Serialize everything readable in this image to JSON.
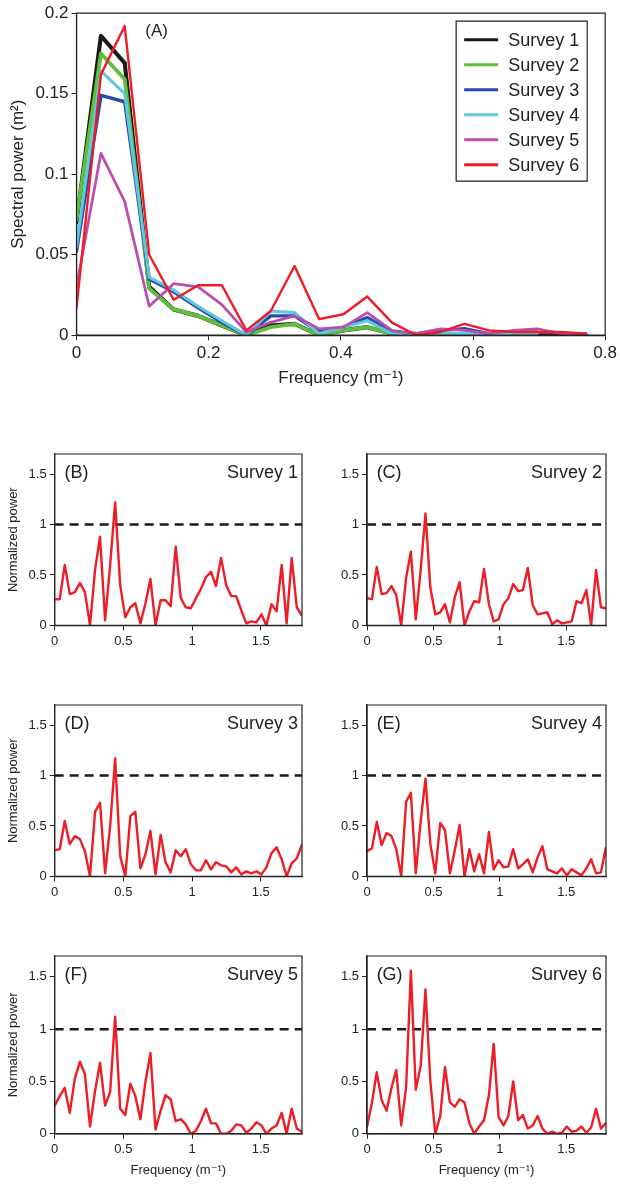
{
  "chart_data": [
    {
      "type": "line",
      "xlabel": "Frequency (m⁻¹)",
      "ylabel": "Spectral power (m²)",
      "annotations": [
        "(A)"
      ],
      "legend": "top right",
      "marker": "none",
      "grid": false,
      "x": [
        0,
        0.037,
        0.073,
        0.11,
        0.147,
        0.184,
        0.22,
        0.257,
        0.294,
        0.33,
        0.367,
        0.404,
        0.44,
        0.477,
        0.514,
        0.551,
        0.587,
        0.624,
        0.661,
        0.697,
        0.734,
        0.771
      ],
      "xlim": [
        0,
        0.8
      ],
      "xticks": [
        0,
        0.2,
        0.4,
        0.6,
        0.8
      ],
      "ylim": [
        0,
        0.2
      ],
      "yticks": [
        0,
        0.05,
        0.1,
        0.15,
        0.2
      ],
      "series": [
        {
          "name": "Survey 1",
          "color": "#1a1a1a",
          "values": [
            0.07,
            0.186,
            0.169,
            0.03,
            0.016,
            0.012,
            0.006,
            0,
            0.006,
            0.007,
            0,
            0.003,
            0.005,
            0.001,
            0,
            0,
            0,
            0,
            0,
            0,
            0,
            0
          ]
        },
        {
          "name": "Survey 2",
          "color": "#5fbf3a",
          "values": [
            0.072,
            0.175,
            0.159,
            0.029,
            0.016,
            0.012,
            0.006,
            0,
            0.005,
            0.007,
            0,
            0.003,
            0.005,
            0.001,
            0,
            null,
            null,
            null,
            null,
            null,
            null,
            null
          ]
        },
        {
          "name": "Survey 3",
          "color": "#2a4aa8",
          "values": [
            0.052,
            0.149,
            0.145,
            0.035,
            0.027,
            0.017,
            0.008,
            0,
            0.012,
            0.012,
            0.002,
            0.005,
            0.011,
            0.002,
            0.001,
            0.003,
            0.004,
            0.001,
            0.002,
            0.002,
            null,
            null
          ]
        },
        {
          "name": "Survey 4",
          "color": "#5fc8dc",
          "values": [
            0.055,
            0.164,
            0.15,
            0.036,
            0.028,
            0.018,
            0.009,
            0,
            0.015,
            0.014,
            0.001,
            0.005,
            0.009,
            0.001,
            0,
            0.001,
            0.001,
            0,
            0.001,
            0.001,
            null,
            null
          ]
        },
        {
          "name": "Survey 5",
          "color": "#b84fae",
          "values": [
            0.03,
            0.113,
            0.083,
            0.018,
            0.032,
            0.03,
            0.019,
            0.002,
            0.008,
            0.012,
            0.004,
            0.005,
            0.014,
            0.003,
            0.001,
            0.004,
            0.003,
            0.001,
            0.003,
            0.004,
            0.001,
            0.001
          ]
        },
        {
          "name": "Survey 6",
          "color": "#ee1c25",
          "values": [
            0.017,
            0.162,
            0.192,
            0.05,
            0.022,
            0.031,
            0.031,
            0.003,
            0.015,
            0.043,
            0.01,
            0.013,
            0.024,
            0.008,
            0,
            0.002,
            0.007,
            0.003,
            0.002,
            0.002,
            0.002,
            0.001
          ]
        }
      ]
    },
    {
      "type": "line",
      "ylabel": "Normalized power",
      "annotations": [
        "(B)",
        "Survey 1"
      ],
      "marker": "none",
      "grid": false,
      "x": [
        0,
        0.037,
        0.073,
        0.11,
        0.147,
        0.184,
        0.22,
        0.257,
        0.294,
        0.33,
        0.367,
        0.404,
        0.44,
        0.477,
        0.514,
        0.551,
        0.587,
        0.624,
        0.661,
        0.697,
        0.734,
        0.771,
        0.807,
        0.844,
        0.881,
        0.918,
        0.954,
        0.991,
        1.028,
        1.064,
        1.101,
        1.138,
        1.174,
        1.211,
        1.248,
        1.285,
        1.321,
        1.358,
        1.395,
        1.431,
        1.468,
        1.505,
        1.541,
        1.578,
        1.615,
        1.652,
        1.688,
        1.725,
        1.762,
        1.798
      ],
      "xlim": [
        0,
        1.8
      ],
      "xticks": [
        0,
        0.5,
        1,
        1.5
      ],
      "ylim": [
        0,
        1.7
      ],
      "yticks": [
        0,
        0.5,
        1,
        1.5
      ],
      "ref_lines": [
        {
          "axis": "y",
          "value": 1,
          "color": "#1a1a1a",
          "line_style": "dashed"
        }
      ],
      "series": [
        {
          "color": "#ee1c25",
          "values": [
            0.26,
            0.26,
            0.6,
            0.31,
            0.33,
            0.42,
            0.33,
            0,
            0.55,
            0.88,
            0.05,
            0.6,
            1.22,
            0.4,
            0.08,
            0.18,
            0.22,
            0.02,
            0.22,
            0.46,
            0,
            0.25,
            0.25,
            0.19,
            0.78,
            0.27,
            0.18,
            0.17,
            0.27,
            0.36,
            0.48,
            0.53,
            0.39,
            0.67,
            0.4,
            0.29,
            0.29,
            0.15,
            0.02,
            0.04,
            0.03,
            0.11,
            0,
            0.21,
            0.14,
            0.6,
            0.02,
            0.67,
            0.18,
            0.1
          ]
        }
      ]
    },
    {
      "type": "line",
      "annotations": [
        "(C)",
        "Survey 2"
      ],
      "marker": "none",
      "grid": false,
      "x": [
        0,
        0.037,
        0.073,
        0.11,
        0.147,
        0.184,
        0.22,
        0.257,
        0.294,
        0.33,
        0.367,
        0.404,
        0.44,
        0.477,
        0.514,
        0.551,
        0.587,
        0.624,
        0.661,
        0.697,
        0.734,
        0.771,
        0.807,
        0.844,
        0.881,
        0.918,
        0.954,
        0.991,
        1.028,
        1.064,
        1.101,
        1.138,
        1.174,
        1.211,
        1.248,
        1.285,
        1.321,
        1.358,
        1.395,
        1.431,
        1.468,
        1.505,
        1.541,
        1.578,
        1.615,
        1.652,
        1.688,
        1.725,
        1.762,
        1.798
      ],
      "xlim": [
        0,
        1.8
      ],
      "xticks": [
        0,
        0.5,
        1,
        1.5
      ],
      "ylim": [
        0,
        1.7
      ],
      "yticks": [
        0,
        0.5,
        1,
        1.5
      ],
      "ref_lines": [
        {
          "axis": "y",
          "value": 1,
          "color": "#1a1a1a",
          "line_style": "dashed"
        }
      ],
      "series": [
        {
          "color": "#ee1c25",
          "values": [
            0.27,
            0.26,
            0.58,
            0.31,
            0.32,
            0.39,
            0.3,
            0,
            0.47,
            0.73,
            0.06,
            0.55,
            1.11,
            0.37,
            0.11,
            0.13,
            0.21,
            0.03,
            0.28,
            0.43,
            0,
            0.14,
            0.24,
            0.23,
            0.56,
            0.21,
            0.04,
            0.06,
            0.21,
            0.27,
            0.41,
            0.34,
            0.35,
            0.57,
            0.2,
            0.11,
            0.12,
            0.13,
            0.01,
            0.05,
            0.02,
            0.03,
            0.04,
            0.24,
            0.22,
            0.35,
            0,
            0.55,
            0.18,
            0.17
          ]
        }
      ]
    },
    {
      "type": "line",
      "ylabel": "Normalized power",
      "annotations": [
        "(D)",
        "Survey 3"
      ],
      "marker": "none",
      "grid": false,
      "x": [
        0,
        0.037,
        0.073,
        0.11,
        0.147,
        0.184,
        0.22,
        0.257,
        0.294,
        0.33,
        0.367,
        0.404,
        0.44,
        0.477,
        0.514,
        0.551,
        0.587,
        0.624,
        0.661,
        0.697,
        0.734,
        0.771,
        0.807,
        0.844,
        0.881,
        0.918,
        0.954,
        0.991,
        1.028,
        1.064,
        1.101,
        1.138,
        1.174,
        1.211,
        1.248,
        1.285,
        1.321,
        1.358,
        1.395,
        1.431,
        1.468,
        1.505,
        1.541,
        1.578,
        1.615,
        1.652,
        1.688,
        1.725,
        1.762,
        1.798
      ],
      "xlim": [
        0,
        1.8
      ],
      "xticks": [
        0,
        0.5,
        1,
        1.5
      ],
      "ylim": [
        0,
        1.7
      ],
      "yticks": [
        0,
        0.5,
        1,
        1.5
      ],
      "ref_lines": [
        {
          "axis": "y",
          "value": 1,
          "color": "#1a1a1a",
          "line_style": "dashed"
        }
      ],
      "series": [
        {
          "color": "#ee1c25",
          "values": [
            0.26,
            0.27,
            0.55,
            0.32,
            0.4,
            0.37,
            0.25,
            0,
            0.64,
            0.73,
            0.03,
            0.5,
            1.17,
            0.2,
            0,
            0.6,
            0.64,
            0.08,
            0.22,
            0.45,
            0.02,
            0.41,
            0.14,
            0.04,
            0.26,
            0.2,
            0.27,
            0.12,
            0.06,
            0.06,
            0.16,
            0.07,
            0.14,
            0.11,
            0.1,
            0.04,
            0.09,
            0.02,
            0.05,
            0.03,
            0.05,
            0.02,
            0.09,
            0.23,
            0.29,
            0.17,
            0,
            0.13,
            0.18,
            0.31
          ]
        }
      ]
    },
    {
      "type": "line",
      "annotations": [
        "(E)",
        "Survey 4"
      ],
      "marker": "none",
      "grid": false,
      "x": [
        0,
        0.037,
        0.073,
        0.11,
        0.147,
        0.184,
        0.22,
        0.257,
        0.294,
        0.33,
        0.367,
        0.404,
        0.44,
        0.477,
        0.514,
        0.551,
        0.587,
        0.624,
        0.661,
        0.697,
        0.734,
        0.771,
        0.807,
        0.844,
        0.881,
        0.918,
        0.954,
        0.991,
        1.028,
        1.064,
        1.101,
        1.138,
        1.174,
        1.211,
        1.248,
        1.285,
        1.321,
        1.358,
        1.395,
        1.431,
        1.468,
        1.505,
        1.541,
        1.578,
        1.615,
        1.652,
        1.688,
        1.725,
        1.762,
        1.798
      ],
      "xlim": [
        0,
        1.8
      ],
      "xticks": [
        0,
        0.5,
        1,
        1.5
      ],
      "ylim": [
        0,
        1.7
      ],
      "yticks": [
        0,
        0.5,
        1,
        1.5
      ],
      "ref_lines": [
        {
          "axis": "y",
          "value": 1,
          "color": "#1a1a1a",
          "line_style": "dashed"
        }
      ],
      "series": [
        {
          "color": "#ee1c25",
          "values": [
            0.25,
            0.28,
            0.54,
            0.31,
            0.43,
            0.4,
            0.27,
            0,
            0.74,
            0.83,
            0.03,
            0.55,
            0.97,
            0.32,
            0.03,
            0.53,
            0.46,
            0.03,
            0.26,
            0.51,
            0,
            0.27,
            0.05,
            0.22,
            0.03,
            0.44,
            0.07,
            0.16,
            0.09,
            0.1,
            0.27,
            0.08,
            0.12,
            0.17,
            0.04,
            0.19,
            0.3,
            0.07,
            0.05,
            0.03,
            0.08,
            0.01,
            0.07,
            0.04,
            0.01,
            0.08,
            0.17,
            0.03,
            0.04,
            0.28
          ]
        }
      ]
    },
    {
      "type": "line",
      "xlabel": "Frequency (m⁻¹)",
      "ylabel": "Normalized power",
      "annotations": [
        "(F)",
        "Survey 5"
      ],
      "marker": "none",
      "grid": false,
      "x": [
        0,
        0.037,
        0.073,
        0.11,
        0.147,
        0.184,
        0.22,
        0.257,
        0.294,
        0.33,
        0.367,
        0.404,
        0.44,
        0.477,
        0.514,
        0.551,
        0.587,
        0.624,
        0.661,
        0.697,
        0.734,
        0.771,
        0.807,
        0.844,
        0.881,
        0.918,
        0.954,
        0.991,
        1.028,
        1.064,
        1.101,
        1.138,
        1.174,
        1.211,
        1.248,
        1.285,
        1.321,
        1.358,
        1.395,
        1.431,
        1.468,
        1.505,
        1.541,
        1.578,
        1.615,
        1.652,
        1.688,
        1.725,
        1.762,
        1.798
      ],
      "xlim": [
        0,
        1.8
      ],
      "xticks": [
        0,
        0.5,
        1,
        1.5
      ],
      "ylim": [
        0,
        1.7
      ],
      "yticks": [
        0,
        0.5,
        1,
        1.5
      ],
      "ref_lines": [
        {
          "axis": "y",
          "value": 1,
          "color": "#1a1a1a",
          "line_style": "dashed"
        }
      ],
      "series": [
        {
          "color": "#ee1c25",
          "values": [
            0.27,
            0.36,
            0.44,
            0.2,
            0.53,
            0.69,
            0.57,
            0.07,
            0.41,
            0.68,
            0.27,
            0.4,
            1.12,
            0.24,
            0.18,
            0.48,
            0.36,
            0.14,
            0.5,
            0.77,
            0.04,
            0.22,
            0.37,
            0.33,
            0.12,
            0.14,
            0.09,
            0,
            0.03,
            0.12,
            0.24,
            0.1,
            0.1,
            0,
            0,
            0.03,
            0.09,
            0.08,
            0.01,
            0.05,
            0.11,
            0.08,
            0,
            0.05,
            0.08,
            0.2,
            0,
            0.24,
            0.05,
            0.02
          ]
        }
      ]
    },
    {
      "type": "line",
      "xlabel": "Frequency (m⁻¹)",
      "annotations": [
        "(G)",
        "Survey 6"
      ],
      "marker": "none",
      "grid": false,
      "x": [
        0,
        0.037,
        0.073,
        0.11,
        0.147,
        0.184,
        0.22,
        0.257,
        0.294,
        0.33,
        0.367,
        0.404,
        0.44,
        0.477,
        0.514,
        0.551,
        0.587,
        0.624,
        0.661,
        0.697,
        0.734,
        0.771,
        0.807,
        0.844,
        0.881,
        0.918,
        0.954,
        0.991,
        1.028,
        1.064,
        1.101,
        1.138,
        1.174,
        1.211,
        1.248,
        1.285,
        1.321,
        1.358,
        1.395,
        1.431,
        1.468,
        1.505,
        1.541,
        1.578,
        1.615,
        1.652,
        1.688,
        1.725,
        1.762,
        1.798
      ],
      "xlim": [
        0,
        1.8
      ],
      "xticks": [
        0,
        0.5,
        1,
        1.5
      ],
      "ylim": [
        0,
        1.7
      ],
      "yticks": [
        0,
        0.5,
        1,
        1.5
      ],
      "ref_lines": [
        {
          "axis": "y",
          "value": 1,
          "color": "#1a1a1a",
          "line_style": "dashed"
        }
      ],
      "series": [
        {
          "color": "#ee1c25",
          "values": [
            0.07,
            0.3,
            0.59,
            0.32,
            0.22,
            0.44,
            0.61,
            0.08,
            0.44,
            1.56,
            0.42,
            0.65,
            1.38,
            0.5,
            0,
            0.17,
            0.64,
            0.3,
            0.26,
            0.33,
            0.3,
            0.1,
            0,
            0.07,
            0.13,
            0.37,
            0.86,
            0.16,
            0.08,
            0.17,
            0.5,
            0.13,
            0.18,
            0.05,
            0.08,
            0.17,
            0.05,
            0,
            0.02,
            0,
            0.01,
            0.07,
            0.02,
            0.03,
            0.07,
            0.01,
            0.06,
            0.24,
            0.05,
            0.1
          ]
        }
      ]
    }
  ]
}
